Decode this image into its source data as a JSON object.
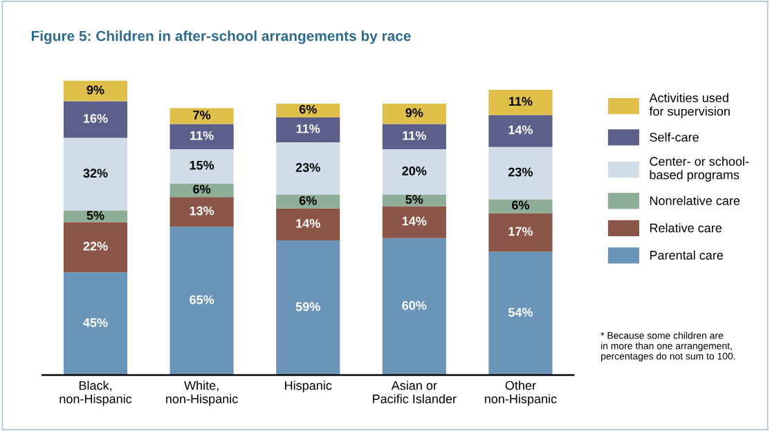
{
  "chart_data": {
    "type": "bar",
    "title": "Figure 5: Children in after-school arrangements by race",
    "categories": [
      "Black,\nnon-Hispanic",
      "White,\nnon-Hispanic",
      "Hispanic",
      "Asian or\nPacific Islander",
      "Other\nnon-Hispanic"
    ],
    "stacked": true,
    "legend": "right",
    "tick_labels": "x",
    "grid": false,
    "series": [
      {
        "name": "Parental care",
        "color": "#6a95b8",
        "values": [
          45,
          65,
          59,
          60,
          54
        ],
        "value_labels": [
          "45%",
          "65%",
          "59%",
          "60%",
          "54%"
        ]
      },
      {
        "name": "Relative care",
        "color": "#8b5548",
        "values": [
          22,
          13,
          14,
          14,
          17
        ],
        "value_labels": [
          "22%",
          "13%",
          "14%",
          "14%",
          "17%"
        ]
      },
      {
        "name": "Nonrelative care",
        "color": "#8fae98",
        "values": [
          5,
          6,
          6,
          5,
          6
        ],
        "value_labels": [
          "5%",
          "6%",
          "6%",
          "5%",
          "6%"
        ]
      },
      {
        "name": "Center- or school-\nbased programs",
        "color": "#d0dce8",
        "values": [
          32,
          15,
          23,
          20,
          23
        ],
        "value_labels": [
          "32%",
          "15%",
          "23%",
          "20%",
          "23%"
        ]
      },
      {
        "name": "Self-care",
        "color": "#5c5f8a",
        "values": [
          16,
          11,
          11,
          11,
          14
        ],
        "value_labels": [
          "16%",
          "11%",
          "11%",
          "11%",
          "14%"
        ]
      },
      {
        "name": "Activities used\nfor supervision",
        "color": "#e0c04a",
        "values": [
          9,
          7,
          6,
          9,
          11
        ],
        "value_labels": [
          "9%",
          "7%",
          "6%",
          "9%",
          "11%"
        ]
      }
    ],
    "annotations": [
      "* Because some children are\nin more than one arrangement,\npercentages do not sum to 100."
    ]
  }
}
